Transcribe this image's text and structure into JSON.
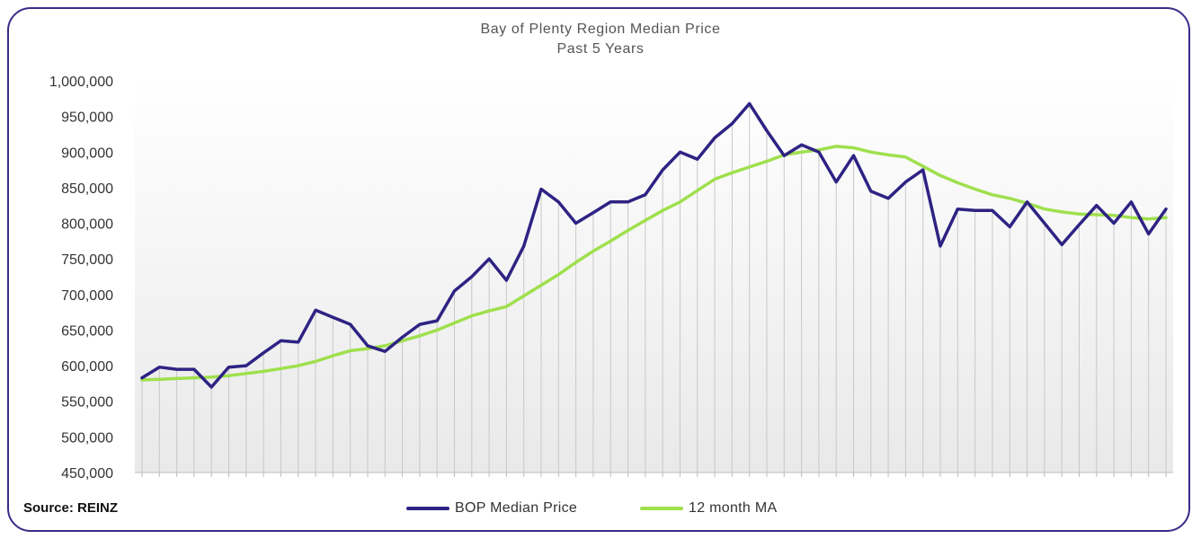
{
  "chart_data": {
    "type": "line",
    "title": "Bay  of Plenty Region Median Price",
    "subtitle": "Past  5 Years",
    "ylim": [
      450000,
      1000000
    ],
    "yticks": [
      "1,000,000",
      "950,000",
      "900,000",
      "850,000",
      "800,000",
      "750,000",
      "700,000",
      "650,000",
      "600,000",
      "550,000",
      "500,000",
      "450,000"
    ],
    "ytick_values": [
      1000000,
      950000,
      900000,
      850000,
      800000,
      750000,
      700000,
      650000,
      600000,
      550000,
      500000,
      450000
    ],
    "grid": "vertical",
    "legend_position": "bottom",
    "series": [
      {
        "name": "BOP Median Price",
        "color": "#2e2383",
        "values": [
          583000,
          598000,
          595000,
          595000,
          570000,
          598000,
          600000,
          618000,
          635000,
          633000,
          678000,
          668000,
          658000,
          628000,
          620000,
          640000,
          658000,
          663000,
          705000,
          725000,
          750000,
          720000,
          768000,
          848000,
          830000,
          800000,
          815000,
          830000,
          830000,
          840000,
          875000,
          900000,
          890000,
          920000,
          940000,
          968000,
          930000,
          895000,
          910000,
          900000,
          858000,
          895000,
          845000,
          835000,
          858000,
          875000,
          768000,
          820000,
          818000,
          818000,
          795000,
          830000,
          800000,
          770000,
          798000,
          825000,
          800000,
          830000,
          785000,
          820000
        ]
      },
      {
        "name": "12 month MA",
        "color": "#9fe04d",
        "values": [
          580000,
          581000,
          582000,
          583000,
          584000,
          586000,
          589000,
          592000,
          596000,
          600000,
          606000,
          614000,
          621000,
          624000,
          628000,
          635000,
          642000,
          650000,
          660000,
          670000,
          677000,
          683000,
          698000,
          713000,
          728000,
          745000,
          761000,
          775000,
          790000,
          804000,
          818000,
          830000,
          846000,
          862000,
          871000,
          879000,
          887000,
          896000,
          900000,
          903000,
          908000,
          906000,
          900000,
          896000,
          893000,
          880000,
          867000,
          857000,
          848000,
          840000,
          835000,
          828000,
          820000,
          816000,
          813000,
          812000,
          811000,
          808000,
          806000,
          808000
        ]
      }
    ]
  },
  "source_label": "Source: REINZ",
  "legend": {
    "series1_label": "BOP Median Price",
    "series2_label": "12 month MA"
  },
  "colors": {
    "frame": "#3a2a8a",
    "series1": "#2e2383",
    "series2": "#9fe04d"
  }
}
